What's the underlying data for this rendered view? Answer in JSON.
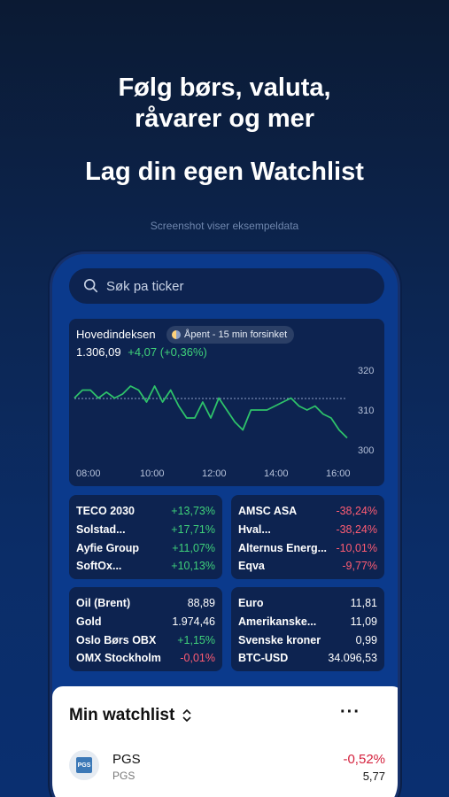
{
  "headline": {
    "line1": "Følg børs, valuta,",
    "line2": "råvarer og mer",
    "line3": "Lag din egen Watchlist"
  },
  "caption": "Screenshot viser eksempeldata",
  "search": {
    "placeholder": "Søk pa ticker",
    "icon": "search-icon"
  },
  "index": {
    "name": "Hovedindeksen",
    "status": "Åpent - 15 min forsinket",
    "value": "1.306,09",
    "change": "+4,07 (+0,36%)"
  },
  "chart_data": {
    "type": "line",
    "x_labels": [
      "08:00",
      "10:00",
      "12:00",
      "14:00",
      "16:00"
    ],
    "y_labels": [
      "320",
      "310",
      "300"
    ],
    "ylim": [
      300,
      320
    ],
    "reference_line": 312.9,
    "series": [
      {
        "values": [
          313,
          315,
          315,
          313,
          314.5,
          313,
          314,
          316,
          315,
          312,
          316,
          312,
          315,
          311,
          308,
          308,
          312,
          308,
          313,
          310,
          307,
          305,
          310,
          310,
          310,
          311,
          312,
          313,
          311,
          310,
          311,
          309,
          308,
          305,
          303
        ]
      }
    ],
    "color": "#2ec26a"
  },
  "movers_up": [
    {
      "name": "TECO 2030",
      "change": "+13,73%"
    },
    {
      "name": "Solstad...",
      "change": "+17,71%"
    },
    {
      "name": "Ayfie Group",
      "change": "+11,07%"
    },
    {
      "name": "SoftOx...",
      "change": "+10,13%"
    }
  ],
  "movers_down": [
    {
      "name": "AMSC ASA",
      "change": "-38,24%"
    },
    {
      "name": "Hval...",
      "change": "-38,24%"
    },
    {
      "name": "Alternus Energ...",
      "change": "-10,01%"
    },
    {
      "name": "Eqva",
      "change": "-9,77%"
    }
  ],
  "markets": [
    {
      "name": "Oil (Brent)",
      "value": "88,89"
    },
    {
      "name": "Gold",
      "value": "1.974,46"
    },
    {
      "name": "Oslo Børs OBX",
      "value": "+1,15%"
    },
    {
      "name": "OMX Stockholm",
      "value": "-0,01%"
    }
  ],
  "currencies": [
    {
      "name": "Euro",
      "value": "11,81"
    },
    {
      "name": "Amerikanske...",
      "value": "11,09"
    },
    {
      "name": "Svenske kroner",
      "value": "0,99"
    },
    {
      "name": "BTC-USD",
      "value": "34.096,53"
    }
  ],
  "watchlist": {
    "title": "Min watchlist",
    "more": "···",
    "items": [
      {
        "name": "PGS",
        "ticker": "PGS",
        "change": "-0,52%",
        "price": "5,77",
        "logo_text": "PGS"
      }
    ]
  },
  "colors": {
    "positive": "#3fd17a",
    "negative": "#ff5c73",
    "background": "#0b2d68"
  }
}
